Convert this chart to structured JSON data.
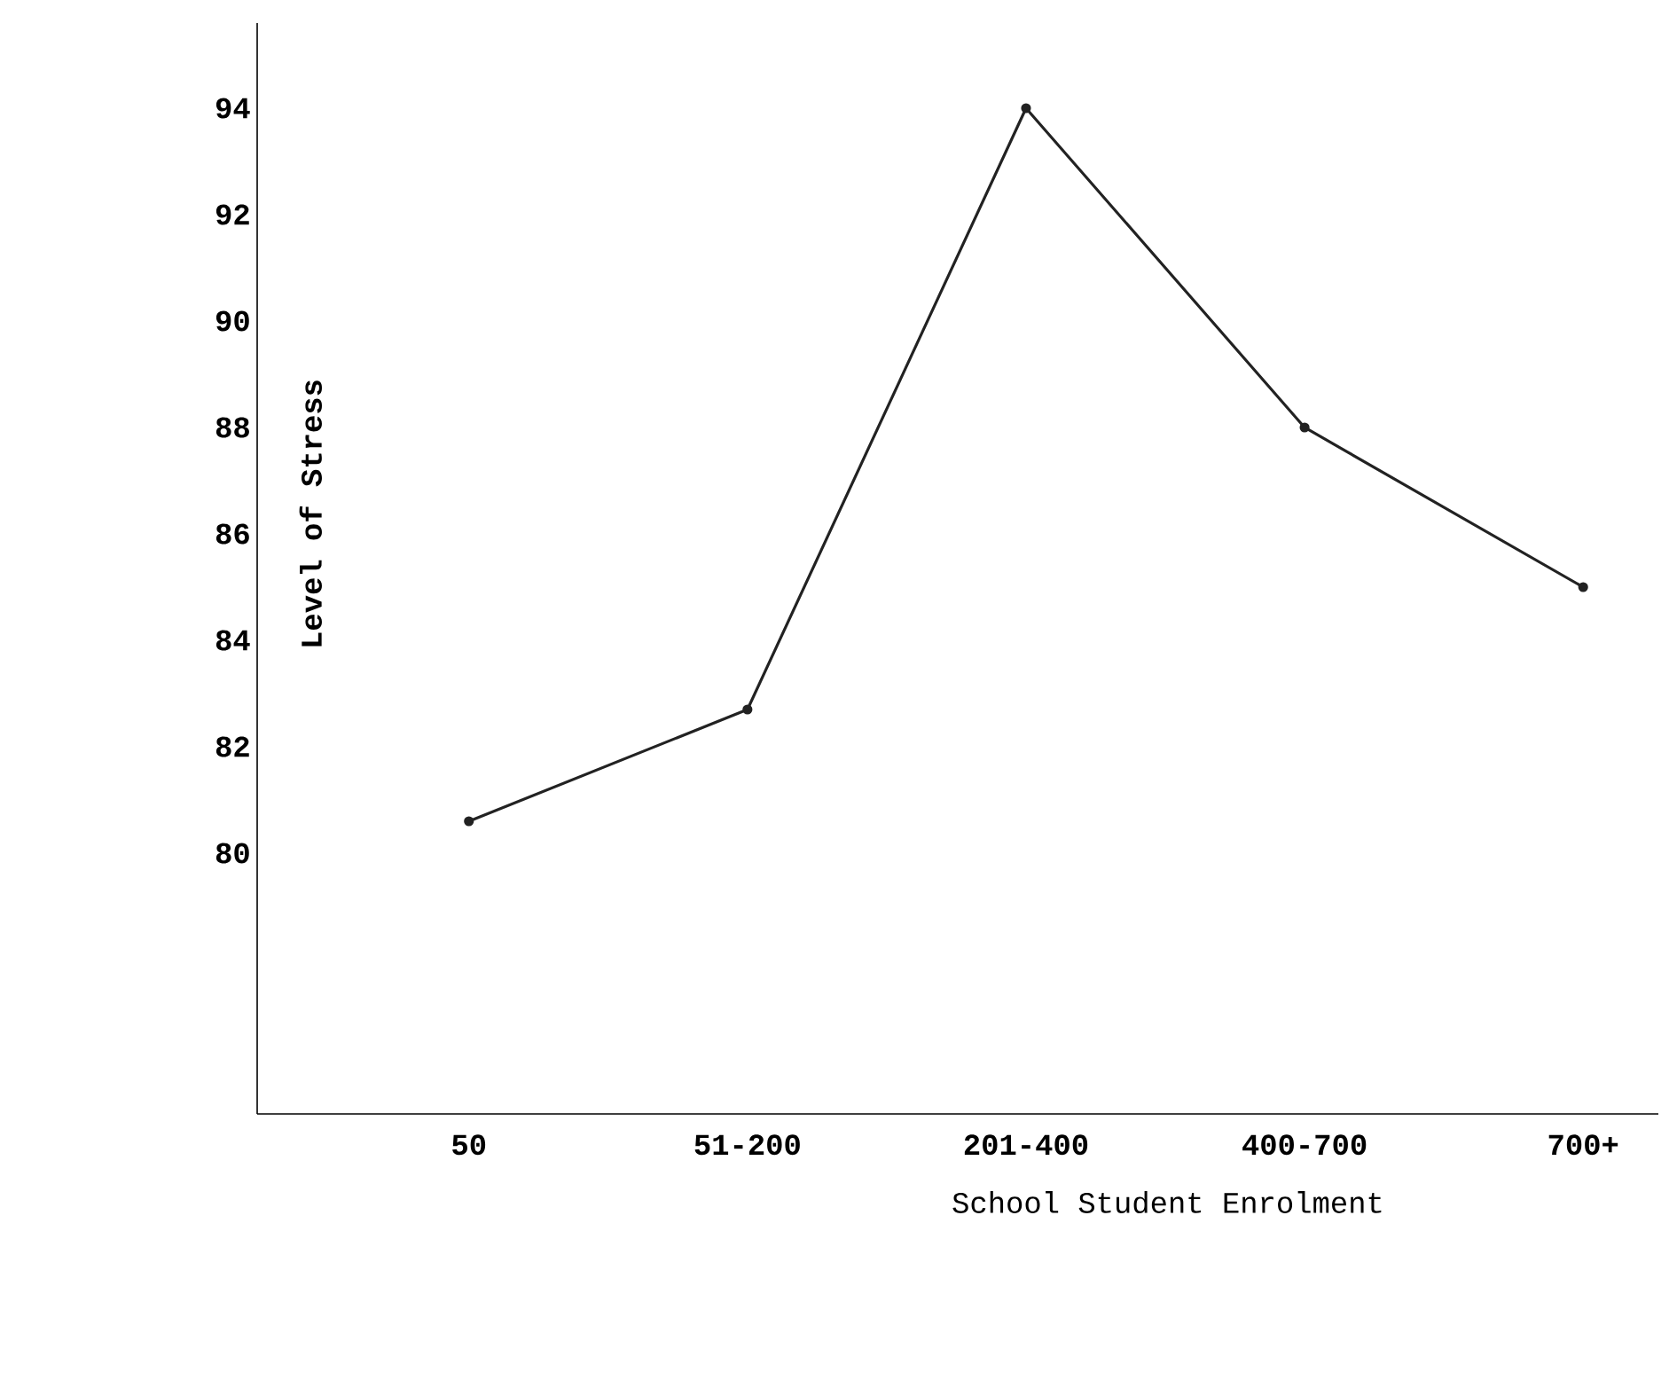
{
  "chart_data": {
    "type": "line",
    "xlabel": "School Student Enrolment",
    "ylabel": "Level of Stress",
    "categories": [
      "50",
      "51-200",
      "201-400",
      "400-700",
      "700+"
    ],
    "values": [
      80.6,
      82.7,
      94,
      88,
      85
    ],
    "color": "#222222",
    "ylim": [
      75.1,
      95.6
    ],
    "yticks": [
      80,
      82,
      84,
      86,
      88,
      90,
      92,
      94
    ],
    "grid": false,
    "marker": "circle",
    "line_style": "solid"
  }
}
